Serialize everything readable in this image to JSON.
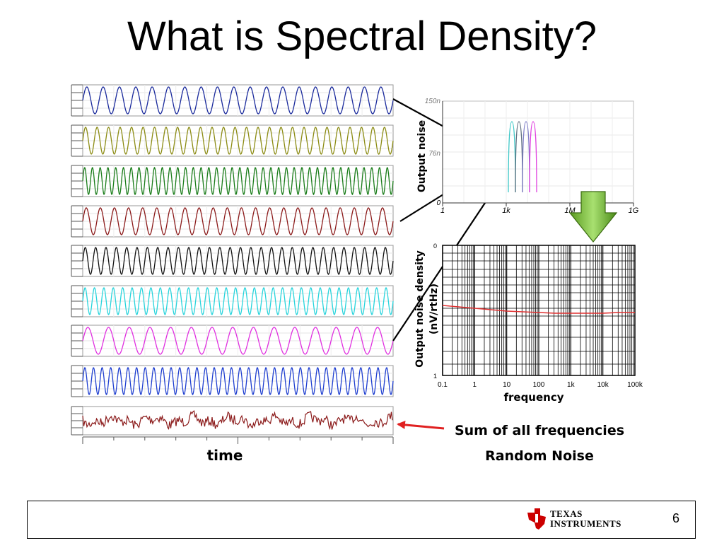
{
  "slide": {
    "title": "What is Spectral Density?",
    "page_number": "6"
  },
  "time_domain": {
    "xlabel": "time",
    "waveforms": [
      {
        "color": "#1a2a9c",
        "cycles": 19
      },
      {
        "color": "#8c8c14",
        "cycles": 27
      },
      {
        "color": "#1a7d1a",
        "cycles": 40
      },
      {
        "color": "#8b1a1a",
        "cycles": 22
      },
      {
        "color": "#111111",
        "cycles": 30
      },
      {
        "color": "#28d4dc",
        "cycles": 33
      },
      {
        "color": "#e030e0",
        "cycles": 15
      },
      {
        "color": "#1f3fd0",
        "cycles": 36
      }
    ],
    "noise_trace": {
      "color": "#8b1a1a"
    }
  },
  "chart_data": [
    {
      "type": "line",
      "ylabel": "Output noise",
      "y_ticks": [
        "150n",
        "76n",
        "0"
      ],
      "x_ticks": [
        "1",
        "1k",
        "1M",
        "1G"
      ],
      "x_scale": "log",
      "grid": true,
      "series_colors": [
        "#40c8c8",
        "#607080",
        "#8080c8",
        "#e040e0"
      ]
    },
    {
      "type": "line",
      "ylabel": "Output noise density (nV/rtHz)",
      "xlabel": "frequency",
      "y_ticks": [
        "0",
        "1"
      ],
      "x_ticks": [
        "0.1",
        "1",
        "10",
        "100",
        "1k",
        "10k",
        "100k"
      ],
      "x_scale": "log",
      "grid": true,
      "series_color": "#e03030"
    }
  ],
  "annotations": {
    "sum_label": "Sum of all frequencies",
    "noise_label": "Random Noise"
  },
  "logo": {
    "line1": "TEXAS",
    "line2": "INSTRUMENTS",
    "color": "#cc0000"
  }
}
